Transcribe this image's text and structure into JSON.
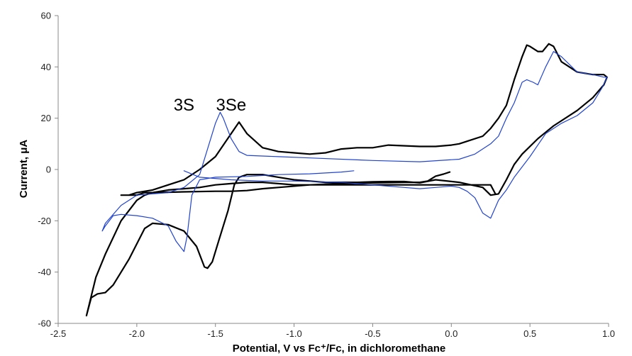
{
  "chart_data": {
    "type": "line",
    "title": "",
    "xlabel": "Potential, V vs Fc⁺/Fc, in dichloromethane",
    "ylabel": "Current, μA",
    "xlim": [
      -2.5,
      1.0
    ],
    "ylim": [
      -60,
      60
    ],
    "xticks": [
      -2.5,
      -2.0,
      -1.5,
      -1.0,
      -0.5,
      0.0,
      0.5,
      1.0
    ],
    "xtick_labels": [
      "-2.5",
      "-2.0",
      "-1.5",
      "-1.0",
      "-0.5",
      "0.0",
      "0.5",
      "1.0"
    ],
    "yticks": [
      -60,
      -40,
      -20,
      0,
      20,
      40,
      60
    ],
    "ytick_labels": [
      "-60",
      "-40",
      "-20",
      "0",
      "20",
      "40",
      "60"
    ],
    "grid": false,
    "legend": "none",
    "annotations": [
      {
        "text": "3S",
        "x": -1.7,
        "y": 23
      },
      {
        "text": "3Se",
        "x": -1.4,
        "y": 23
      }
    ],
    "series": [
      {
        "color": "#000000",
        "points": [
          [
            -0.01,
            -1
          ],
          [
            -0.05,
            -1.8
          ],
          [
            -0.1,
            -2.6
          ],
          [
            -0.15,
            -4.5
          ],
          [
            -0.2,
            -5
          ],
          [
            -0.3,
            -5
          ],
          [
            -0.5,
            -5.2
          ],
          [
            -0.7,
            -5.5
          ],
          [
            -0.9,
            -6
          ],
          [
            -1.1,
            -7
          ],
          [
            -1.2,
            -7.5
          ],
          [
            -1.3,
            -8.2
          ],
          [
            -1.4,
            -8.5
          ],
          [
            -1.5,
            -8.5
          ],
          [
            -1.7,
            -8.7
          ],
          [
            -1.9,
            -9
          ],
          [
            -1.95,
            -10
          ],
          [
            -2.0,
            -12
          ],
          [
            -2.1,
            -20
          ],
          [
            -2.2,
            -33
          ],
          [
            -2.26,
            -42
          ],
          [
            -2.3,
            -52
          ],
          [
            -2.32,
            -57
          ],
          [
            -2.29,
            -50
          ],
          [
            -2.25,
            -48.5
          ],
          [
            -2.2,
            -48
          ],
          [
            -2.15,
            -45
          ],
          [
            -2.05,
            -35
          ],
          [
            -1.95,
            -23
          ],
          [
            -1.9,
            -21
          ],
          [
            -1.8,
            -21.5
          ],
          [
            -1.7,
            -24
          ],
          [
            -1.62,
            -30
          ],
          [
            -1.57,
            -38
          ],
          [
            -1.55,
            -38.5
          ],
          [
            -1.52,
            -36
          ],
          [
            -1.48,
            -28
          ],
          [
            -1.42,
            -16
          ],
          [
            -1.38,
            -6
          ],
          [
            -1.35,
            -3
          ],
          [
            -1.3,
            -2
          ],
          [
            -1.2,
            -2
          ],
          [
            -1.1,
            -3
          ],
          [
            -1.0,
            -4
          ],
          [
            -0.9,
            -4.5
          ],
          [
            -0.8,
            -5
          ],
          [
            -0.7,
            -5
          ],
          [
            -0.6,
            -5
          ],
          [
            -0.5,
            -4.8
          ],
          [
            -0.4,
            -4.7
          ],
          [
            -0.3,
            -4.7
          ],
          [
            -0.2,
            -5.2
          ],
          [
            -0.1,
            -4
          ],
          [
            0.05,
            -5
          ],
          [
            0.2,
            -7
          ],
          [
            0.25,
            -10
          ],
          [
            0.3,
            -9.5
          ],
          [
            0.35,
            -4
          ],
          [
            0.4,
            2
          ],
          [
            0.45,
            6
          ],
          [
            0.55,
            12
          ],
          [
            0.65,
            17
          ],
          [
            0.8,
            23
          ],
          [
            0.9,
            28
          ],
          [
            0.97,
            33
          ],
          [
            0.99,
            36
          ],
          [
            0.97,
            37
          ],
          [
            0.9,
            37
          ],
          [
            0.8,
            38
          ],
          [
            0.7,
            42
          ],
          [
            0.65,
            48
          ],
          [
            0.62,
            49
          ],
          [
            0.58,
            46
          ],
          [
            0.55,
            46
          ],
          [
            0.5,
            48
          ],
          [
            0.48,
            48.5
          ],
          [
            0.45,
            44
          ],
          [
            0.4,
            35
          ],
          [
            0.35,
            25
          ],
          [
            0.3,
            20
          ],
          [
            0.25,
            16
          ],
          [
            0.2,
            13
          ],
          [
            0.1,
            11
          ],
          [
            0.05,
            10
          ],
          [
            0.0,
            9.5
          ],
          [
            -0.1,
            9
          ],
          [
            -0.2,
            9
          ],
          [
            -0.4,
            9.5
          ],
          [
            -0.5,
            8.5
          ],
          [
            -0.6,
            8.5
          ],
          [
            -0.7,
            8
          ],
          [
            -0.8,
            6.5
          ],
          [
            -0.9,
            6
          ],
          [
            -1.0,
            6.5
          ],
          [
            -1.1,
            7
          ],
          [
            -1.2,
            8.5
          ],
          [
            -1.3,
            14
          ],
          [
            -1.35,
            18.5
          ],
          [
            -1.4,
            14
          ],
          [
            -1.5,
            5
          ],
          [
            -1.6,
            0
          ],
          [
            -1.7,
            -4
          ],
          [
            -1.8,
            -6
          ],
          [
            -1.9,
            -8
          ],
          [
            -2.0,
            -9
          ],
          [
            -2.05,
            -10
          ],
          [
            -2.1,
            -10
          ],
          [
            -2.0,
            -10
          ],
          [
            -1.95,
            -9
          ],
          [
            -1.9,
            -9
          ],
          [
            -1.8,
            -8
          ],
          [
            -1.7,
            -7.5
          ],
          [
            -1.6,
            -7
          ],
          [
            -1.5,
            -6
          ],
          [
            -1.4,
            -5.5
          ],
          [
            -1.3,
            -5
          ],
          [
            -1.2,
            -5
          ],
          [
            -1.1,
            -5.5
          ],
          [
            -1.0,
            -6
          ],
          [
            0.25,
            -6
          ],
          [
            0.28,
            -9.5
          ]
        ]
      },
      {
        "color": "#2244cc",
        "points": [
          [
            -0.62,
            -0.5
          ],
          [
            -0.7,
            -1
          ],
          [
            -0.9,
            -1.7
          ],
          [
            -1.1,
            -2
          ],
          [
            -1.3,
            -2.7
          ],
          [
            -1.5,
            -3
          ],
          [
            -1.6,
            -4
          ],
          [
            -1.65,
            -10
          ],
          [
            -1.68,
            -26
          ],
          [
            -1.7,
            -32
          ],
          [
            -1.75,
            -28
          ],
          [
            -1.8,
            -22
          ],
          [
            -1.9,
            -19
          ],
          [
            -2.0,
            -18
          ],
          [
            -2.1,
            -17.5
          ],
          [
            -2.15,
            -18
          ],
          [
            -2.2,
            -22
          ],
          [
            -2.22,
            -24
          ],
          [
            -2.2,
            -21
          ],
          [
            -2.1,
            -14
          ],
          [
            -2.0,
            -10
          ],
          [
            -1.9,
            -9.5
          ],
          [
            -1.8,
            -9
          ],
          [
            -1.7,
            -7
          ],
          [
            -1.6,
            -2
          ],
          [
            -1.55,
            8
          ],
          [
            -1.5,
            18
          ],
          [
            -1.47,
            22.3
          ],
          [
            -1.45,
            20
          ],
          [
            -1.4,
            12
          ],
          [
            -1.35,
            7
          ],
          [
            -1.3,
            5.5
          ],
          [
            -1.1,
            5
          ],
          [
            -0.9,
            4.5
          ],
          [
            -0.5,
            3.5
          ],
          [
            -0.2,
            3
          ],
          [
            0.05,
            4
          ],
          [
            0.15,
            6
          ],
          [
            0.25,
            10
          ],
          [
            0.3,
            13
          ],
          [
            0.35,
            20
          ],
          [
            0.4,
            26
          ],
          [
            0.45,
            34
          ],
          [
            0.48,
            35
          ],
          [
            0.52,
            34
          ],
          [
            0.55,
            33
          ],
          [
            0.6,
            40
          ],
          [
            0.65,
            46
          ],
          [
            0.7,
            44
          ],
          [
            0.8,
            38
          ],
          [
            0.9,
            37
          ],
          [
            0.97,
            36
          ],
          [
            0.99,
            36
          ],
          [
            0.96,
            32
          ],
          [
            0.9,
            26
          ],
          [
            0.8,
            21
          ],
          [
            0.7,
            18
          ],
          [
            0.6,
            14
          ],
          [
            0.5,
            5
          ],
          [
            0.4,
            -3
          ],
          [
            0.35,
            -8
          ],
          [
            0.3,
            -12
          ],
          [
            0.25,
            -19
          ],
          [
            0.2,
            -17
          ],
          [
            0.15,
            -11
          ],
          [
            0.1,
            -8.5
          ],
          [
            0.05,
            -7
          ],
          [
            0.0,
            -6.5
          ],
          [
            -0.1,
            -7
          ],
          [
            -0.2,
            -7.5
          ],
          [
            -0.3,
            -7
          ],
          [
            -0.4,
            -6.5
          ],
          [
            -0.5,
            -6
          ],
          [
            -0.7,
            -5
          ],
          [
            -1.0,
            -4.5
          ],
          [
            -1.2,
            -4.5
          ],
          [
            -1.4,
            -4
          ],
          [
            -1.6,
            -3
          ],
          [
            -1.7,
            -0.5
          ]
        ]
      }
    ]
  }
}
